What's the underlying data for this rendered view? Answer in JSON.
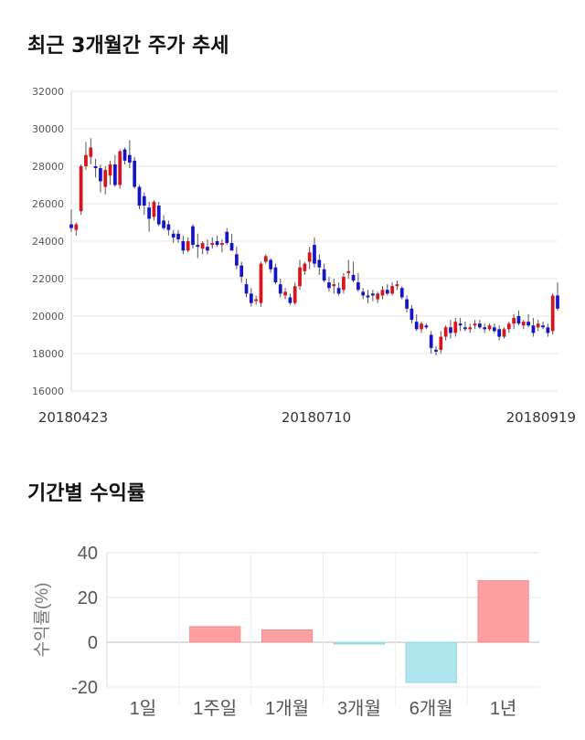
{
  "section1": {
    "title": "최근 3개월간 주가 추세"
  },
  "section2": {
    "title": "기간별 수익률"
  },
  "chart_data": [
    {
      "type": "candlestick",
      "title": "최근 3개월간 주가 추세",
      "ylim": [
        16000,
        32000
      ],
      "y_ticks": [
        "32000",
        "30000",
        "28000",
        "26000",
        "24000",
        "22000",
        "20000",
        "18000",
        "16000"
      ],
      "x_tick_labels": [
        "20180423",
        "20180710",
        "20180919"
      ],
      "grid": true,
      "colors": {
        "up": "#d9141a",
        "down": "#1414c8",
        "wick": "#555555"
      },
      "candles": [
        [
          24900,
          25700,
          24500,
          24700
        ],
        [
          24600,
          25000,
          24300,
          24900
        ],
        [
          25600,
          28100,
          25400,
          28000
        ],
        [
          28000,
          29300,
          27800,
          28600
        ],
        [
          28500,
          29500,
          28100,
          29000
        ],
        [
          28000,
          28400,
          27400,
          27900
        ],
        [
          27900,
          28100,
          26600,
          27200
        ],
        [
          26900,
          28000,
          26500,
          27800
        ],
        [
          27500,
          28300,
          27000,
          28100
        ],
        [
          28100,
          28600,
          26900,
          27000
        ],
        [
          27000,
          28900,
          26800,
          28800
        ],
        [
          28900,
          29000,
          28100,
          28300
        ],
        [
          28600,
          29400,
          27900,
          28200
        ],
        [
          28300,
          28500,
          26800,
          26900
        ],
        [
          26900,
          27000,
          25700,
          25900
        ],
        [
          26400,
          26600,
          25400,
          25900
        ],
        [
          25800,
          26100,
          24500,
          25200
        ],
        [
          25300,
          26200,
          25100,
          26100
        ],
        [
          25900,
          26100,
          24800,
          24900
        ],
        [
          25100,
          25400,
          24600,
          24700
        ],
        [
          24900,
          25100,
          24300,
          24600
        ],
        [
          24400,
          24600,
          23900,
          24200
        ],
        [
          24400,
          24600,
          23900,
          24100
        ],
        [
          24000,
          24300,
          23300,
          23500
        ],
        [
          23500,
          24200,
          23400,
          24000
        ],
        [
          24800,
          24900,
          23600,
          23800
        ],
        [
          23800,
          24400,
          23100,
          23700
        ],
        [
          23600,
          24000,
          23300,
          23900
        ],
        [
          23700,
          24100,
          23300,
          23500
        ],
        [
          23800,
          24200,
          23600,
          23900
        ],
        [
          24000,
          24300,
          23700,
          23800
        ],
        [
          23800,
          24100,
          23400,
          23900
        ],
        [
          24500,
          24700,
          23800,
          23900
        ],
        [
          23900,
          24400,
          23500,
          23500
        ],
        [
          23300,
          23700,
          22500,
          22700
        ],
        [
          22700,
          22900,
          21800,
          22100
        ],
        [
          21700,
          22000,
          21000,
          21200
        ],
        [
          21200,
          21500,
          20500,
          20700
        ],
        [
          20800,
          21100,
          20600,
          20900
        ],
        [
          20700,
          22900,
          20500,
          22800
        ],
        [
          22900,
          23300,
          22800,
          23200
        ],
        [
          23000,
          23100,
          22300,
          22500
        ],
        [
          22600,
          22800,
          21700,
          21800
        ],
        [
          21700,
          22000,
          21000,
          21200
        ],
        [
          21100,
          21500,
          20900,
          21300
        ],
        [
          21000,
          21200,
          20600,
          20700
        ],
        [
          20700,
          21800,
          20600,
          21600
        ],
        [
          21600,
          23000,
          21400,
          22600
        ],
        [
          22400,
          22900,
          22200,
          22800
        ],
        [
          22900,
          23700,
          22500,
          23400
        ],
        [
          23800,
          24200,
          22600,
          22800
        ],
        [
          23000,
          23300,
          22200,
          22600
        ],
        [
          22500,
          22800,
          21800,
          21900
        ],
        [
          21800,
          22100,
          21300,
          21500
        ],
        [
          21600,
          22000,
          21200,
          21700
        ],
        [
          21500,
          21800,
          21100,
          21200
        ],
        [
          21400,
          22300,
          21200,
          22100
        ],
        [
          22300,
          23000,
          22000,
          22400
        ],
        [
          22200,
          22900,
          21800,
          21900
        ],
        [
          21800,
          22300,
          21300,
          21400
        ],
        [
          21300,
          21500,
          20900,
          21100
        ],
        [
          21100,
          21400,
          20700,
          21000
        ],
        [
          21200,
          21400,
          20800,
          21100
        ],
        [
          20900,
          21300,
          20700,
          21200
        ],
        [
          21100,
          21600,
          20900,
          21400
        ],
        [
          21400,
          21700,
          21100,
          21200
        ],
        [
          21200,
          21800,
          21100,
          21600
        ],
        [
          21600,
          21900,
          21400,
          21700
        ],
        [
          21500,
          21600,
          20900,
          21000
        ],
        [
          20900,
          21100,
          20200,
          20400
        ],
        [
          20400,
          20600,
          19600,
          19800
        ],
        [
          19700,
          20100,
          19200,
          19300
        ],
        [
          19300,
          19700,
          19100,
          19600
        ],
        [
          19500,
          19600,
          19300,
          19400
        ],
        [
          19000,
          19200,
          18000,
          18300
        ],
        [
          18200,
          18400,
          17900,
          18100
        ],
        [
          18200,
          19200,
          18000,
          18900
        ],
        [
          18900,
          19500,
          18700,
          19400
        ],
        [
          19400,
          19800,
          18800,
          19100
        ],
        [
          19100,
          19900,
          18900,
          19700
        ],
        [
          19600,
          19900,
          19200,
          19500
        ],
        [
          19400,
          19700,
          19200,
          19300
        ],
        [
          19300,
          19600,
          19100,
          19400
        ],
        [
          19500,
          19800,
          19300,
          19600
        ],
        [
          19600,
          19800,
          19300,
          19400
        ],
        [
          19400,
          19600,
          19100,
          19300
        ],
        [
          19300,
          19600,
          19200,
          19500
        ],
        [
          19400,
          19600,
          19100,
          19200
        ],
        [
          19300,
          19500,
          18700,
          18900
        ],
        [
          18900,
          19400,
          18800,
          19300
        ],
        [
          19300,
          19700,
          19100,
          19600
        ],
        [
          19600,
          20100,
          19300,
          19900
        ],
        [
          20000,
          20300,
          19500,
          19600
        ],
        [
          19500,
          19800,
          19300,
          19700
        ],
        [
          19700,
          20100,
          19400,
          19500
        ],
        [
          19500,
          19900,
          18900,
          19100
        ],
        [
          19400,
          19800,
          19200,
          19600
        ],
        [
          19500,
          19700,
          19300,
          19400
        ],
        [
          19400,
          19600,
          18900,
          19100
        ],
        [
          19200,
          21200,
          19000,
          21100
        ],
        [
          21100,
          21800,
          20300,
          20400
        ]
      ]
    },
    {
      "type": "bar",
      "title": "기간별 수익률",
      "ylabel": "수익률(%)",
      "ylim": [
        -20,
        40
      ],
      "y_ticks": [
        "40",
        "20",
        "0",
        "-20"
      ],
      "categories": [
        "1일",
        "1주일",
        "1개월",
        "3개월",
        "6개월",
        "1년"
      ],
      "values": [
        0,
        7,
        5.5,
        -0.8,
        -18,
        27.5
      ],
      "grid": true,
      "colors": {
        "positive": "#ff9fa2",
        "negative": "#aee6f0"
      }
    }
  ]
}
